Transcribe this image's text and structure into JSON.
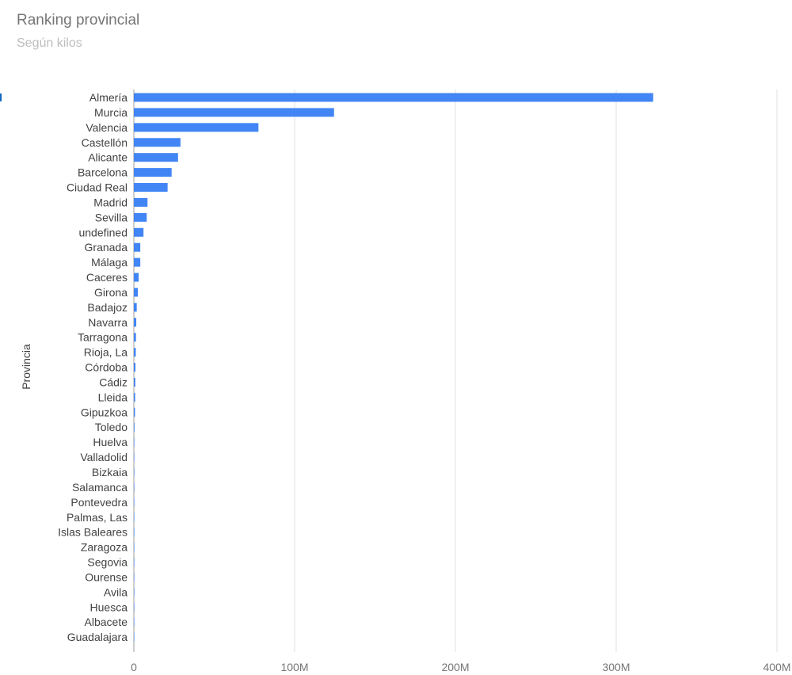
{
  "title": "Ranking provincial",
  "subtitle": "Según kilos",
  "colors": {
    "bar": "#4285f4",
    "grid": "#e0e0e0",
    "axis": "#757575",
    "label": "#424242",
    "title": "#757575",
    "subtitle": "#bdbdbd"
  },
  "chart_data": {
    "type": "bar",
    "orientation": "horizontal",
    "ylabel": "Provincia",
    "xlabel": "",
    "xlim": [
      0,
      400000000
    ],
    "xticks": [
      0,
      100000000,
      200000000,
      300000000,
      400000000
    ],
    "xtick_labels": [
      "0",
      "100M",
      "200M",
      "300M",
      "400M"
    ],
    "grid": true,
    "legend": "none",
    "categories": [
      "Almería",
      "Murcia",
      "Valencia",
      "Castellón",
      "Alicante",
      "Barcelona",
      "Ciudad Real",
      "Madrid",
      "Sevilla",
      "undefined",
      "Granada",
      "Málaga",
      "Caceres",
      "Girona",
      "Badajoz",
      "Navarra",
      "Tarragona",
      "Rioja, La",
      "Córdoba",
      "Cádiz",
      "Lleida",
      "Gipuzkoa",
      "Toledo",
      "Huelva",
      "Valladolid",
      "Bizkaia",
      "Salamanca",
      "Pontevedra",
      "Palmas, Las",
      "Islas Baleares",
      "Zaragoza",
      "Segovia",
      "Ourense",
      "Avila",
      "Huesca",
      "Albacete",
      "Guadalajara"
    ],
    "values": [
      323000000,
      124500000,
      77500000,
      29000000,
      27500000,
      23500000,
      21000000,
      8500000,
      8000000,
      6000000,
      4000000,
      4000000,
      3000000,
      2500000,
      1800000,
      1500000,
      1300000,
      1200000,
      1000000,
      900000,
      800000,
      700000,
      400000,
      300000,
      250000,
      200000,
      200000,
      150000,
      120000,
      100000,
      80000,
      60000,
      50000,
      40000,
      30000,
      20000,
      10000
    ]
  }
}
